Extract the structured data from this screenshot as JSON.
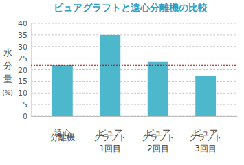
{
  "chart_data": {
    "type": "bar",
    "title": "ピュアグラフトと遠心分離機の比較",
    "y_label": [
      "水",
      "分",
      "量",
      "(%)"
    ],
    "categories": [
      "遠心\n分離機",
      "ピュア\nグラフト\n1回目",
      "ピュア\nグラフト\n2回目",
      "ピュア\nグラフト\n3回目"
    ],
    "values": [
      22,
      35,
      23.5,
      17.5
    ],
    "color": "#4db8cb",
    "reference_line": 22,
    "ylim": [
      0,
      40
    ],
    "yticks": [
      0,
      5,
      10,
      15,
      20,
      25,
      30,
      35,
      40
    ],
    "grid": true
  }
}
